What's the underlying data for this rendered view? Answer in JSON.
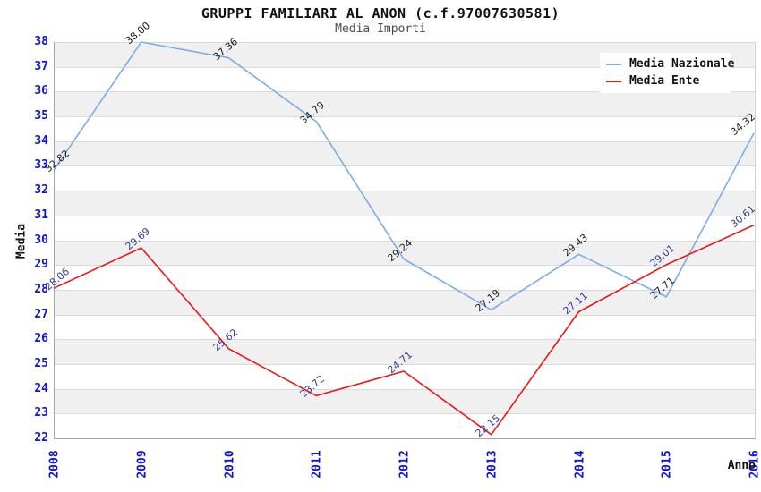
{
  "chart_data": {
    "type": "line",
    "title": "GRUPPI FAMILIARI AL ANON (c.f.97007630581)",
    "subtitle": "Media Importi",
    "xlabel": "Anno",
    "ylabel": "Media",
    "x": [
      2008,
      2009,
      2010,
      2011,
      2012,
      2013,
      2014,
      2015,
      2016
    ],
    "ylim": [
      22,
      38
    ],
    "ytick_step": 1,
    "grid": "horizontal-alternating-bands",
    "legend_position": "top-right",
    "series": [
      {
        "name": "Media Nazionale",
        "color": "#7aaee8",
        "label_color": "#1a1a1a",
        "values": [
          32.82,
          38.0,
          37.36,
          34.79,
          29.24,
          27.19,
          29.43,
          27.71,
          34.32
        ],
        "labels": [
          "32.82",
          "38.00",
          "37.36",
          "34.79",
          "29.24",
          "27.19",
          "29.43",
          "27.71",
          "34.32"
        ]
      },
      {
        "name": "Media Ente",
        "color": "#ee1515",
        "label_color": "#333a99",
        "values": [
          28.06,
          29.69,
          25.62,
          23.72,
          24.71,
          22.15,
          27.11,
          29.01,
          30.61
        ],
        "labels": [
          "28.06",
          "29.69",
          "25.62",
          "23.72",
          "24.71",
          "22.15",
          "27.11",
          "29.01",
          "30.61"
        ]
      }
    ]
  },
  "colors": {
    "tick_label": "#1414cc",
    "band_gray": "#f0f0f0",
    "band_white": "#ffffff",
    "gridline": "#dadada",
    "axis": "#a6a6a6",
    "title": "#111111",
    "subtitle": "#4d4d4d",
    "legend_background": "#ffffff"
  }
}
